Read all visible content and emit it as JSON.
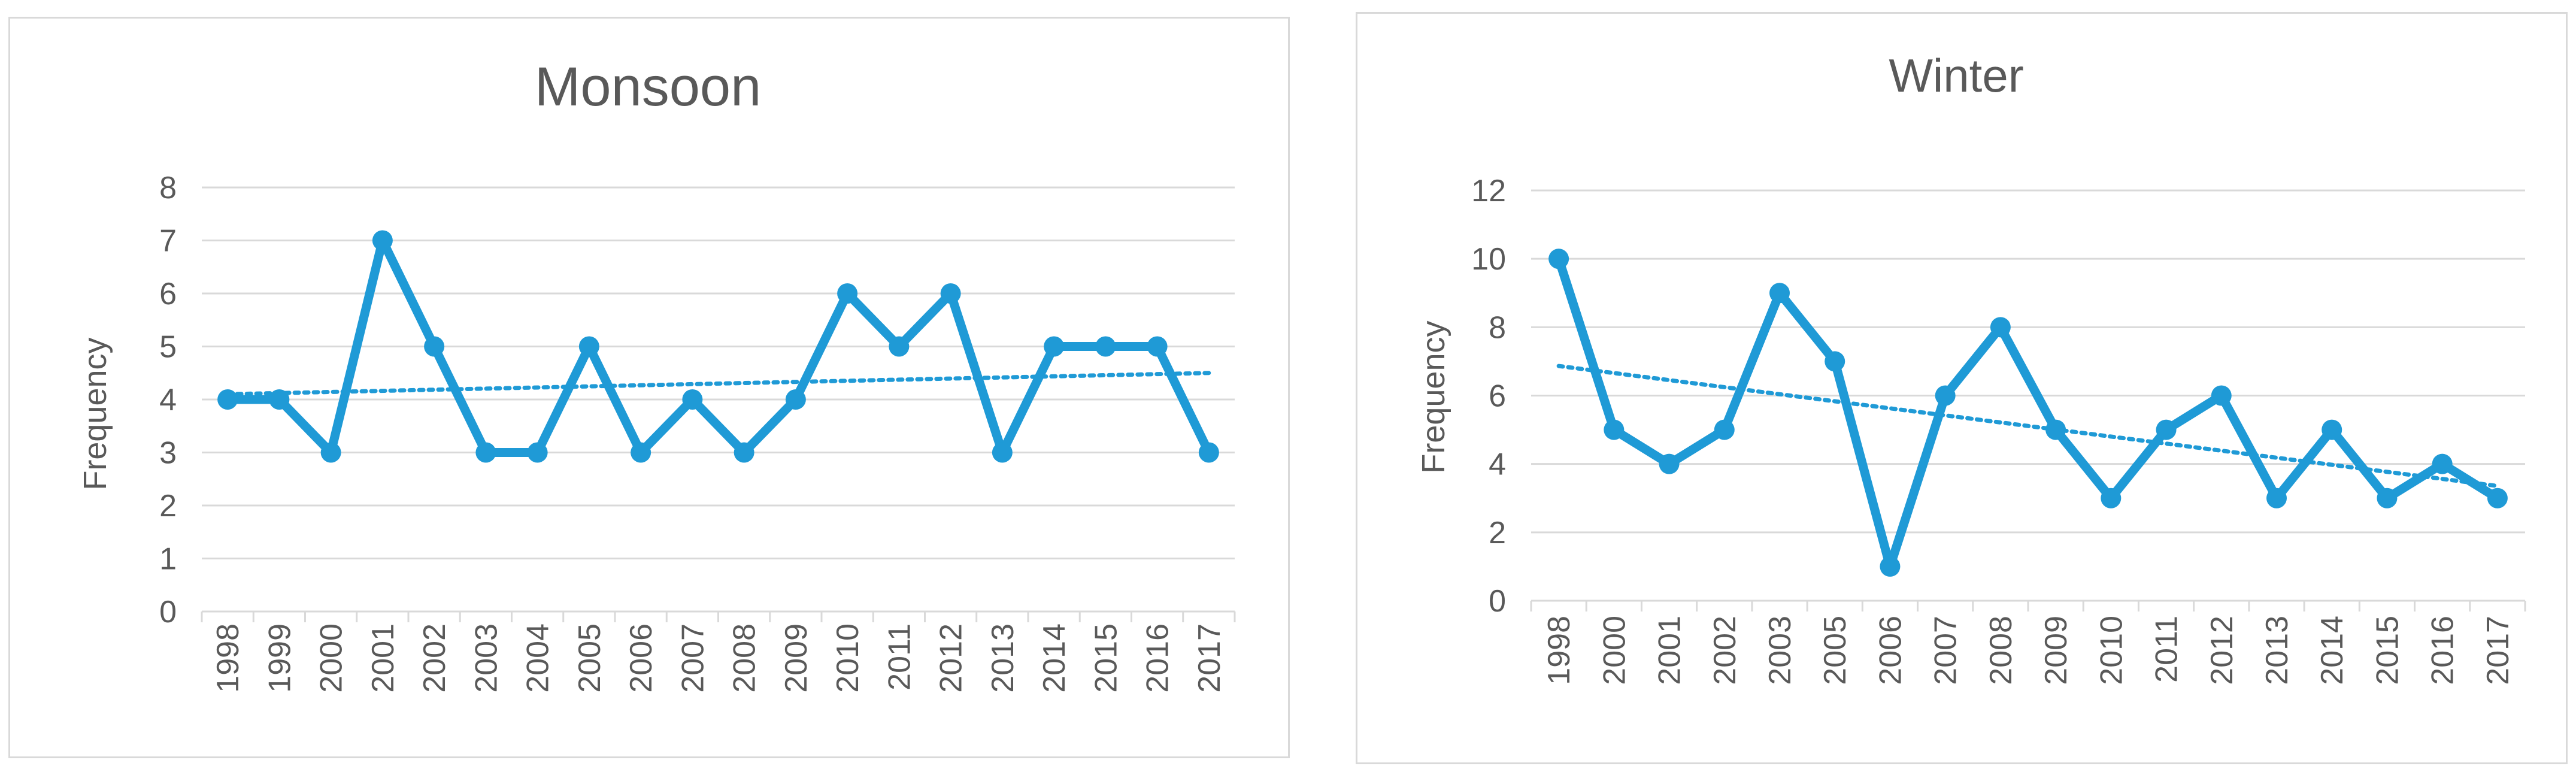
{
  "chart_data": [
    {
      "type": "line",
      "title": "Monsoon",
      "xlabel": "",
      "ylabel": "Frequency",
      "ylim": [
        0,
        8
      ],
      "ytick_step": 1,
      "grid": true,
      "trendline": "linear",
      "color": "#1f9ad6",
      "categories": [
        "1998",
        "1999",
        "2000",
        "2001",
        "2002",
        "2003",
        "2004",
        "2005",
        "2006",
        "2007",
        "2008",
        "2009",
        "2010",
        "2011",
        "2012",
        "2013",
        "2014",
        "2015",
        "2016",
        "2017"
      ],
      "series": [
        {
          "values": [
            4,
            4,
            3,
            7,
            5,
            3,
            3,
            5,
            3,
            4,
            3,
            4,
            6,
            5,
            6,
            3,
            5,
            5,
            5,
            3
          ]
        }
      ]
    },
    {
      "type": "line",
      "title": "Winter",
      "xlabel": "",
      "ylabel": "Frequency",
      "ylim": [
        0,
        12
      ],
      "ytick_step": 2,
      "grid": true,
      "trendline": "linear",
      "color": "#1f9ad6",
      "categories": [
        "1998",
        "2000",
        "2001",
        "2002",
        "2003",
        "2005",
        "2006",
        "2007",
        "2008",
        "2009",
        "2010",
        "2011",
        "2012",
        "2013",
        "2014",
        "2015",
        "2016",
        "2017"
      ],
      "series": [
        {
          "values": [
            10,
            5,
            4,
            5,
            9,
            7,
            1,
            6,
            8,
            5,
            3,
            5,
            6,
            3,
            5,
            3,
            4,
            3
          ]
        }
      ]
    }
  ]
}
